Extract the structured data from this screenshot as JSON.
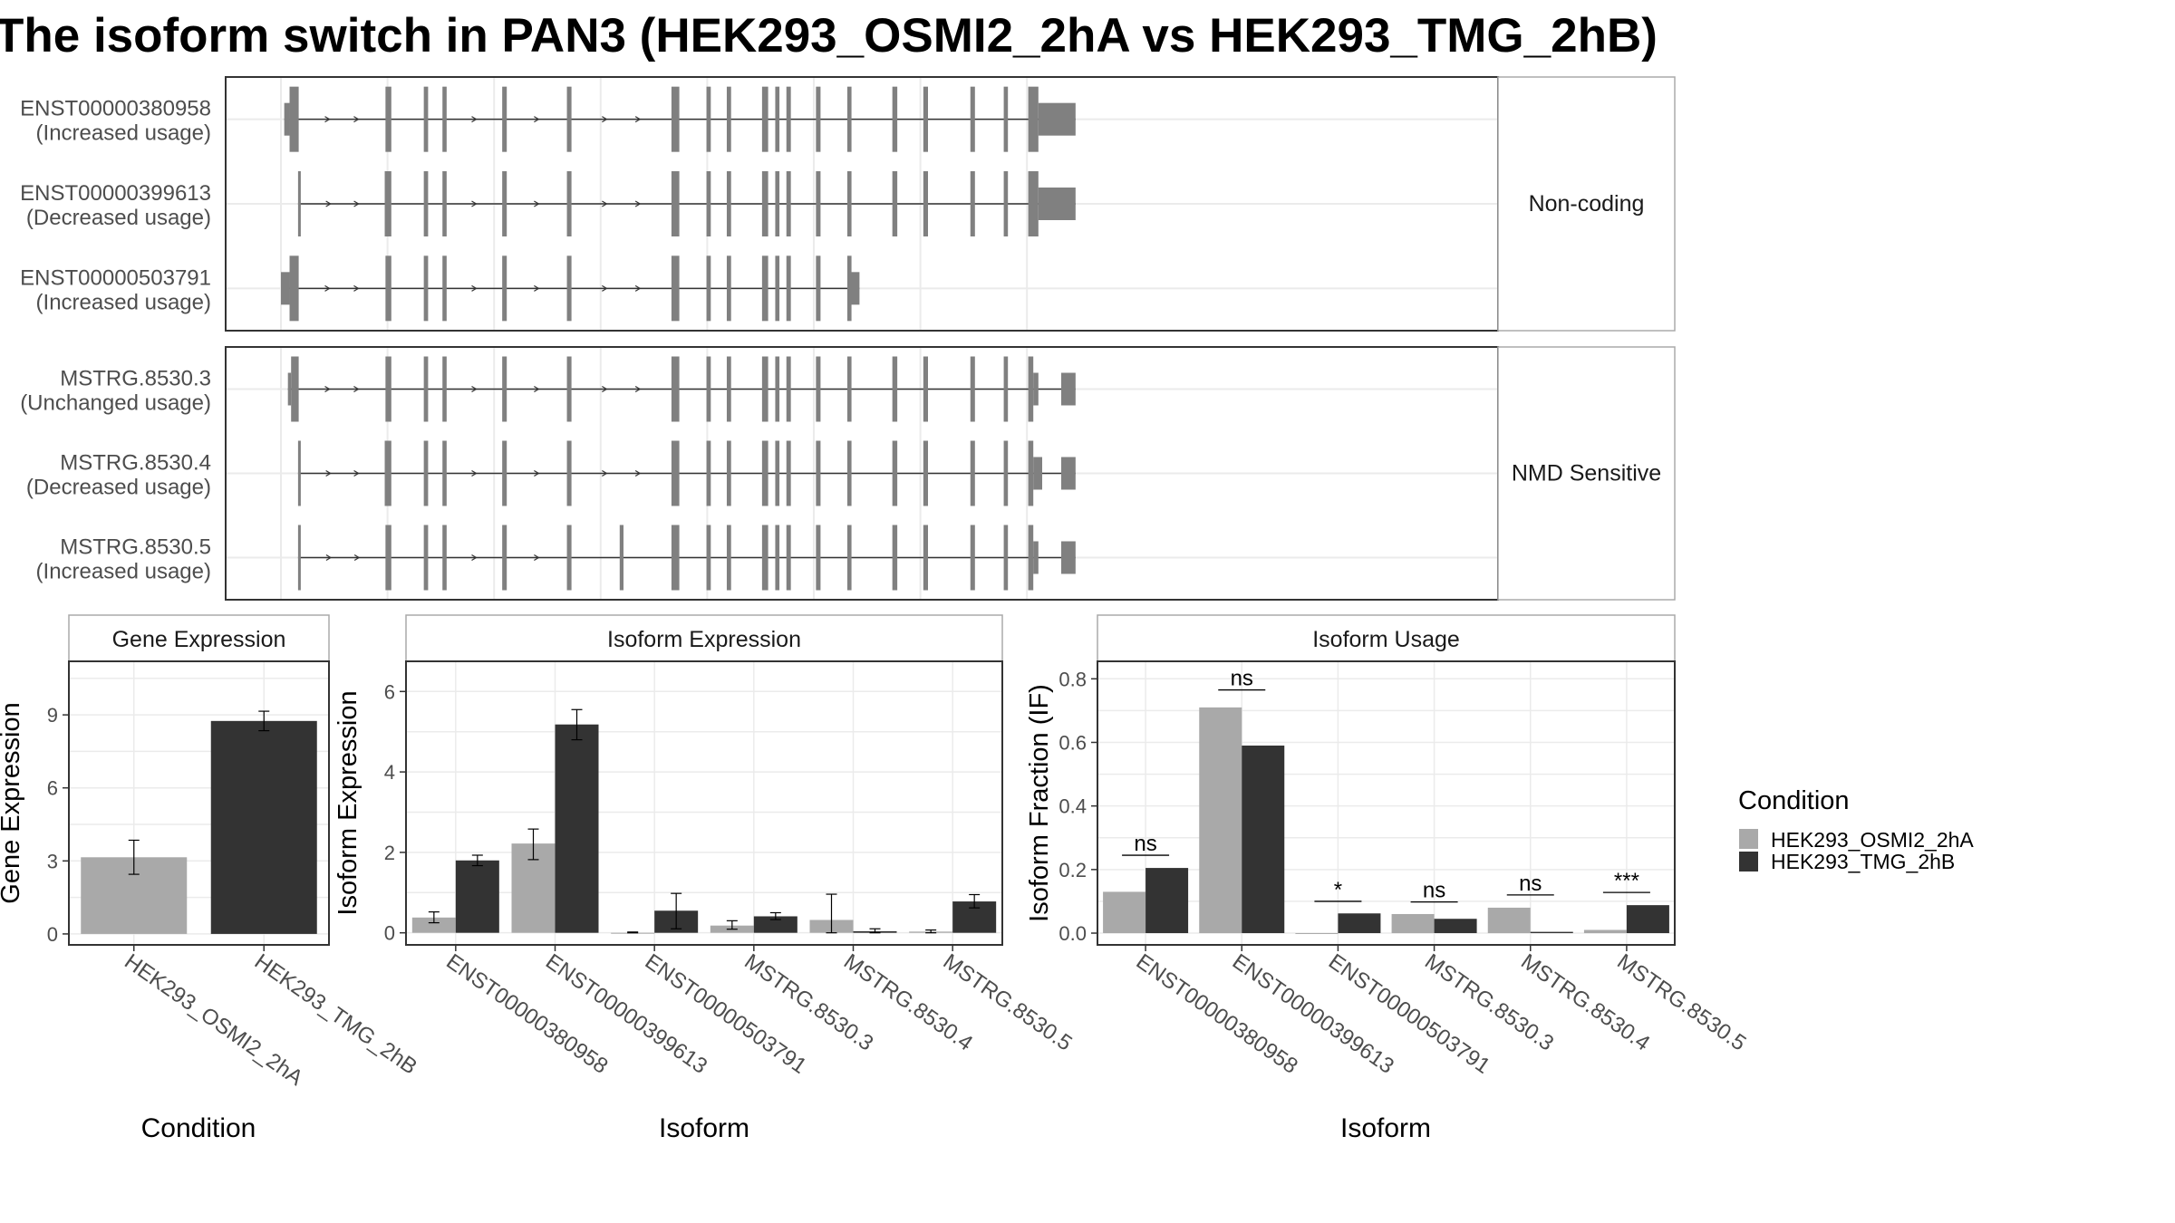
{
  "title": "The isoform switch in PAN3 (HEK293_OSMI2_2hA vs HEK293_TMG_2hB)",
  "colors": {
    "exon": "#808080",
    "intron": "#333333",
    "condition_a": "#a9a9a9",
    "condition_b": "#333333",
    "grid": "#ebebeb",
    "frame": "#333333",
    "strip_border": "#aaaaaa",
    "text": "#4d4d4d"
  },
  "structure": {
    "groups": [
      {
        "label": "Non-coding",
        "transcripts": [
          {
            "id": "ENST00000380958",
            "usage": "(Increased usage)",
            "exons": [
              [
                2.6,
                6.8
              ],
              [
                6.8,
                14.0
              ],
              [
                82.4,
                87.0
              ],
              [
                112.6,
                116.0
              ],
              [
                127.3,
                130.6
              ],
              [
                174.4,
                178.0
              ],
              [
                225.4,
                229.0
              ],
              [
                307.8,
                314.0
              ],
              [
                335.4,
                338.8
              ],
              [
                351.4,
                354.8
              ],
              [
                379.2,
                384.0
              ],
              [
                389.6,
                392.9
              ],
              [
                398.4,
                401.9
              ],
              [
                421.7,
                425.3
              ],
              [
                446.4,
                449.7
              ],
              [
                481.9,
                485.8
              ],
              [
                506.3,
                510.0
              ],
              [
                543.4,
                547.0
              ],
              [
                569.7,
                573.0
              ],
              [
                589.0,
                597.0
              ],
              [
                597.0,
                626.3
              ]
            ],
            "utr_exons": [
              0,
              20
            ]
          },
          {
            "id": "ENST00000399613",
            "usage": "(Decreased usage)",
            "exons": [
              [
                13.5,
                15.5
              ],
              [
                81.8,
                83.0
              ],
              [
                83.0,
                87.0
              ],
              [
                112.6,
                116.0
              ],
              [
                127.3,
                130.6
              ],
              [
                174.4,
                178.0
              ],
              [
                225.4,
                229.0
              ],
              [
                307.8,
                314.0
              ],
              [
                335.4,
                338.8
              ],
              [
                351.4,
                354.8
              ],
              [
                379.2,
                384.0
              ],
              [
                389.6,
                392.9
              ],
              [
                398.4,
                401.9
              ],
              [
                421.7,
                425.3
              ],
              [
                446.4,
                449.7
              ],
              [
                481.9,
                485.8
              ],
              [
                506.3,
                510.0
              ],
              [
                543.4,
                547.0
              ],
              [
                569.7,
                573.0
              ],
              [
                589.0,
                597.0
              ],
              [
                597.0,
                626.3
              ]
            ],
            "utr_exons": [
              20
            ]
          },
          {
            "id": "ENST00000503791",
            "usage": "(Increased usage)",
            "exons": [
              [
                0.0,
                6.8
              ],
              [
                6.8,
                14.0
              ],
              [
                82.4,
                87.0
              ],
              [
                112.6,
                116.0
              ],
              [
                127.3,
                130.6
              ],
              [
                174.4,
                178.0
              ],
              [
                225.4,
                229.0
              ],
              [
                307.8,
                314.0
              ],
              [
                335.4,
                338.8
              ],
              [
                351.4,
                354.8
              ],
              [
                379.2,
                384.0
              ],
              [
                389.6,
                392.9
              ],
              [
                398.4,
                401.9
              ],
              [
                421.7,
                425.3
              ],
              [
                446.4,
                449.7
              ],
              [
                448.5,
                456.0
              ]
            ],
            "utr_exons": [
              0,
              15
            ]
          }
        ]
      },
      {
        "label": "NMD Sensitive",
        "transcripts": [
          {
            "id": "MSTRG.8530.3",
            "usage": "(Unchanged usage)",
            "exons": [
              [
                5.5,
                8.0
              ],
              [
                8.0,
                14.0
              ],
              [
                82.4,
                87.0
              ],
              [
                112.6,
                116.0
              ],
              [
                127.3,
                130.6
              ],
              [
                174.4,
                178.0
              ],
              [
                225.4,
                229.0
              ],
              [
                307.8,
                314.0
              ],
              [
                335.4,
                338.8
              ],
              [
                351.4,
                354.8
              ],
              [
                379.2,
                384.0
              ],
              [
                389.6,
                392.9
              ],
              [
                398.4,
                401.9
              ],
              [
                421.7,
                425.3
              ],
              [
                446.4,
                449.7
              ],
              [
                481.9,
                485.8
              ],
              [
                506.3,
                510.0
              ],
              [
                543.4,
                547.0
              ],
              [
                569.7,
                573.0
              ],
              [
                589.0,
                593.0
              ],
              [
                593.0,
                597.0
              ],
              [
                615.0,
                626.3
              ]
            ],
            "utr_exons": [
              0,
              20,
              21
            ]
          },
          {
            "id": "MSTRG.8530.4",
            "usage": "(Decreased usage)",
            "exons": [
              [
                13.5,
                15.5
              ],
              [
                81.8,
                83.0
              ],
              [
                83.0,
                87.0
              ],
              [
                112.6,
                116.0
              ],
              [
                127.3,
                130.6
              ],
              [
                174.4,
                178.0
              ],
              [
                225.4,
                229.0
              ],
              [
                307.8,
                314.0
              ],
              [
                335.4,
                338.8
              ],
              [
                351.4,
                354.8
              ],
              [
                379.2,
                384.0
              ],
              [
                389.6,
                392.9
              ],
              [
                398.4,
                401.9
              ],
              [
                421.7,
                425.3
              ],
              [
                446.4,
                449.7
              ],
              [
                481.9,
                485.8
              ],
              [
                506.3,
                510.0
              ],
              [
                543.4,
                547.0
              ],
              [
                569.7,
                573.0
              ],
              [
                589.0,
                593.0
              ],
              [
                593.0,
                600.0
              ],
              [
                615.0,
                626.3
              ]
            ],
            "utr_exons": [
              20,
              21
            ]
          },
          {
            "id": "MSTRG.8530.5",
            "usage": "(Increased usage)",
            "exons": [
              [
                13.5,
                15.5
              ],
              [
                82.4,
                87.0
              ],
              [
                112.6,
                116.0
              ],
              [
                127.3,
                130.6
              ],
              [
                174.4,
                178.0
              ],
              [
                225.4,
                229.0
              ],
              [
                267.0,
                270.0
              ],
              [
                307.8,
                314.0
              ],
              [
                335.4,
                338.8
              ],
              [
                351.4,
                354.8
              ],
              [
                379.2,
                384.0
              ],
              [
                389.6,
                392.9
              ],
              [
                398.4,
                401.9
              ],
              [
                421.7,
                425.3
              ],
              [
                446.4,
                449.7
              ],
              [
                481.9,
                485.8
              ],
              [
                506.3,
                510.0
              ],
              [
                543.4,
                547.0
              ],
              [
                569.7,
                573.0
              ],
              [
                589.0,
                593.0
              ],
              [
                593.0,
                597.0
              ],
              [
                615.0,
                626.3
              ]
            ],
            "utr_exons": [
              20,
              21
            ]
          }
        ]
      }
    ]
  },
  "chart_data": [
    {
      "panel": "Gene Expression",
      "type": "bar",
      "xlabel": "Condition",
      "ylabel": "Gene Expression",
      "ylim": [
        -0.45,
        11.2
      ],
      "yticks": [
        0,
        3,
        6,
        9
      ],
      "categories": [
        "HEK293_OSMI2_2hA",
        "HEK293_TMG_2hB"
      ],
      "series": [
        {
          "values": [
            3.15,
            8.75
          ],
          "err_low": [
            2.45,
            8.35
          ],
          "err_high": [
            3.85,
            9.15
          ]
        }
      ]
    },
    {
      "panel": "Isoform Expression",
      "type": "bar",
      "xlabel": "Isoform",
      "ylabel": "Isoform Expression",
      "ylim": [
        -0.3,
        6.75
      ],
      "yticks": [
        0,
        2,
        4,
        6
      ],
      "categories": [
        "ENST00000380958",
        "ENST00000399613",
        "ENST00000503791",
        "MSTRG.8530.3",
        "MSTRG.8530.4",
        "MSTRG.8530.5"
      ],
      "series": [
        {
          "name": "HEK293_OSMI2_2hA",
          "values": [
            0.38,
            2.22,
            0.0,
            0.18,
            0.32,
            0.03
          ],
          "err_low": [
            0.25,
            1.82,
            0.0,
            0.09,
            0.0,
            0.0
          ],
          "err_high": [
            0.52,
            2.58,
            0.02,
            0.3,
            0.96,
            0.07
          ]
        },
        {
          "name": "HEK293_TMG_2hB",
          "values": [
            1.8,
            5.18,
            0.55,
            0.41,
            0.04,
            0.78
          ],
          "err_low": [
            1.67,
            4.8,
            0.1,
            0.33,
            0.0,
            0.62
          ],
          "err_high": [
            1.93,
            5.55,
            0.98,
            0.5,
            0.1,
            0.95
          ]
        }
      ]
    },
    {
      "panel": "Isoform Usage",
      "type": "bar",
      "xlabel": "Isoform",
      "ylabel": "Isoform Fraction (IF)",
      "ylim": [
        -0.037,
        0.855
      ],
      "yticks": [
        0.0,
        0.2,
        0.4,
        0.6,
        0.8
      ],
      "ytick_labels": [
        "0.0",
        "0.2",
        "0.4",
        "0.6",
        "0.8"
      ],
      "categories": [
        "ENST00000380958",
        "ENST00000399613",
        "ENST00000503791",
        "MSTRG.8530.3",
        "MSTRG.8530.4",
        "MSTRG.8530.5"
      ],
      "series": [
        {
          "name": "HEK293_OSMI2_2hA",
          "values": [
            0.13,
            0.71,
            0.0,
            0.06,
            0.08,
            0.01
          ]
        },
        {
          "name": "HEK293_TMG_2hB",
          "values": [
            0.205,
            0.59,
            0.062,
            0.045,
            0.004,
            0.088
          ]
        }
      ],
      "significance": [
        "ns",
        "ns",
        "*",
        "ns",
        "ns",
        "***"
      ],
      "significance_y": [
        0.245,
        0.765,
        0.1,
        0.098,
        0.12,
        0.128
      ]
    }
  ],
  "legend": {
    "title": "Condition",
    "items": [
      "HEK293_OSMI2_2hA",
      "HEK293_TMG_2hB"
    ]
  }
}
